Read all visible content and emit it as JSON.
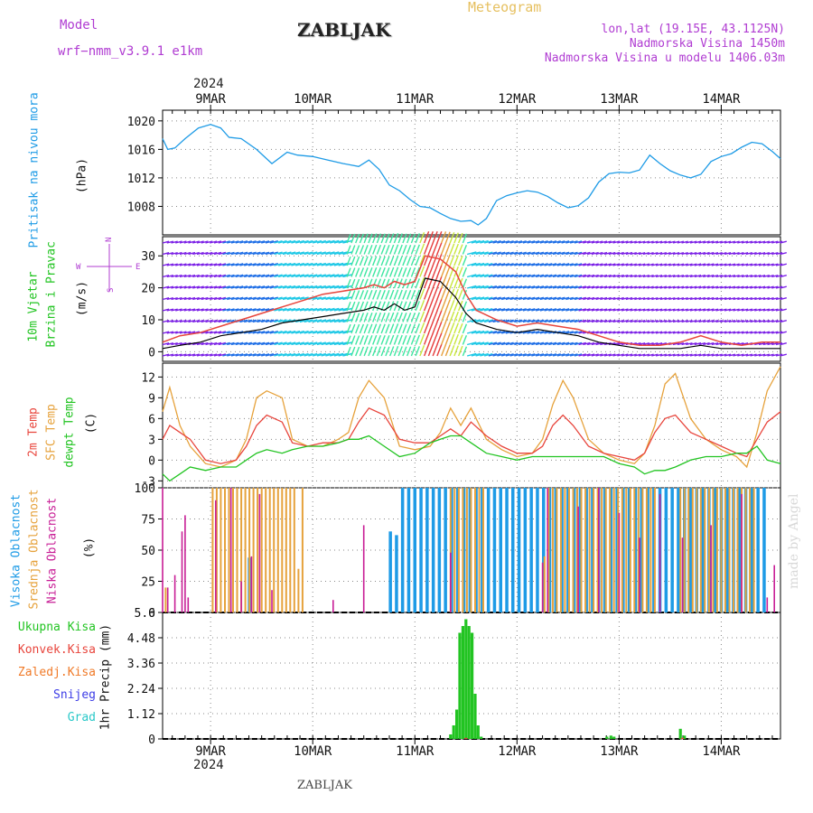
{
  "header": {
    "model_label": "Model",
    "model_name": "wrf−nmm_v3.9.1  e1km",
    "title": "ZABLJAK",
    "meteogram": "Meteogram",
    "location": "lon,lat (19.15E, 43.1125N)",
    "altitude": "Nadmorska Visina 1450m",
    "model_altitude": "Nadmorska Visina u modelu 1406.03m",
    "year": "2024",
    "footer_station": "ZABLJAK",
    "watermark": "made by Angel"
  },
  "axis_labels": {
    "pressure_name": "Pritisak na nivou mora",
    "pressure_unit": "(hPa)",
    "wind_name1": "10m Vjetar",
    "wind_name2": "Brzina i Pravac",
    "wind_unit": "(m/s)",
    "compass_n": "N",
    "compass_s": "S",
    "compass_w": "W",
    "compass_e": "E",
    "temp_name1": "2m Temp",
    "temp_name2": "SFC Temp",
    "temp_name3": "dewpt Temp",
    "temp_unit": "(C)",
    "cloud_name1": "Visoka Oblacnost",
    "cloud_name2": "Srednja Oblacnost",
    "cloud_name3": "Niska Oblacnost",
    "cloud_unit": "(%)",
    "precip_axis": "1hr Precip (mm)",
    "precip_legend": [
      "Ukupna Kisa",
      "Konvek.Kisa",
      "Zaledj.Kisa",
      "Snijeg",
      "Grad"
    ]
  },
  "colors": {
    "pressure": "#1e9be6",
    "temp2m": "#e8453c",
    "sfc": "#e6a23c",
    "dewpt": "#22c422",
    "high_cloud": "#1e9be6",
    "mid_cloud": "#e6a23c",
    "low_cloud": "#c81e96",
    "precip_total": "#22c422",
    "precip_conv": "#e8453c",
    "precip_frz": "#f07a28",
    "precip_snow": "#3c3ce6",
    "precip_hail": "#28c8c8",
    "wind_speed": "#000000",
    "wind_gust": "#e8453c",
    "header_purple": "#b03cd2",
    "header_gold": "#e6c060"
  },
  "chart_data": [
    {
      "type": "line",
      "name": "pressure",
      "x_tick_labels": [
        "9MAR",
        "10MAR",
        "11MAR",
        "12MAR",
        "13MAR",
        "14MAR"
      ],
      "x_ticks_day": [
        0,
        1,
        2,
        3,
        4,
        5
      ],
      "xlim_day": [
        -0.47,
        5.58
      ],
      "ylim": [
        1004,
        1021.5
      ],
      "yticks": [
        1008,
        1012,
        1016,
        1020
      ],
      "series": [
        {
          "x": [
            -0.47,
            -0.42,
            -0.35,
            -0.25,
            -0.12,
            0.0,
            0.1,
            0.18,
            0.3,
            0.45,
            0.6,
            0.75,
            0.85,
            1.0,
            1.15,
            1.3,
            1.45,
            1.55,
            1.65,
            1.75,
            1.85,
            1.95,
            2.05,
            2.15,
            2.25,
            2.35,
            2.45,
            2.55,
            2.62,
            2.7,
            2.8,
            2.9,
            3.0,
            3.1,
            3.2,
            3.3,
            3.4,
            3.5,
            3.6,
            3.7,
            3.8,
            3.9,
            4.0,
            4.1,
            4.2,
            4.3,
            4.4,
            4.5,
            4.6,
            4.7,
            4.8,
            4.9,
            5.0,
            5.1,
            5.2,
            5.3,
            5.4,
            5.5,
            5.58
          ],
          "values": [
            1017.5,
            1016.0,
            1016.2,
            1017.5,
            1019.0,
            1019.5,
            1019.0,
            1017.7,
            1017.5,
            1016.0,
            1014.0,
            1015.6,
            1015.2,
            1015.0,
            1014.5,
            1014.0,
            1013.6,
            1014.5,
            1013.2,
            1011.0,
            1010.2,
            1009.0,
            1008.0,
            1007.8,
            1007.0,
            1006.3,
            1005.9,
            1006.0,
            1005.4,
            1006.3,
            1008.8,
            1009.5,
            1009.9,
            1010.2,
            1010.0,
            1009.4,
            1008.5,
            1007.8,
            1008.1,
            1009.2,
            1011.4,
            1012.6,
            1012.8,
            1012.7,
            1013.1,
            1015.2,
            1014.0,
            1013.0,
            1012.4,
            1012.0,
            1012.5,
            1014.3,
            1015.0,
            1015.4,
            1016.3,
            1017.0,
            1016.8,
            1015.7,
            1014.7
          ]
        }
      ]
    },
    {
      "type": "line",
      "name": "wind",
      "xlim_day": [
        -0.47,
        5.58
      ],
      "ylim": [
        -3,
        36
      ],
      "yticks": [
        0,
        10,
        20,
        30
      ],
      "series": [
        {
          "x": [
            -0.47,
            -0.3,
            -0.1,
            0.1,
            0.3,
            0.5,
            0.7,
            0.9,
            1.1,
            1.3,
            1.5,
            1.6,
            1.7,
            1.8,
            1.9,
            2.0,
            2.1,
            2.25,
            2.4,
            2.5,
            2.6,
            2.8,
            3.0,
            3.2,
            3.4,
            3.6,
            3.8,
            4.0,
            4.2,
            4.4,
            4.6,
            4.8,
            5.0,
            5.2,
            5.4,
            5.58
          ],
          "values": [
            1,
            2,
            3,
            5,
            6,
            7,
            9,
            10,
            11,
            12,
            13,
            14,
            13,
            15,
            13,
            14,
            23,
            22,
            17,
            12,
            9,
            7,
            6,
            7,
            6,
            5,
            3,
            2,
            1,
            1,
            1,
            2,
            1,
            1,
            1,
            1
          ]
        },
        {
          "x": [
            -0.47,
            -0.3,
            -0.1,
            0.1,
            0.3,
            0.5,
            0.7,
            0.9,
            1.1,
            1.3,
            1.5,
            1.6,
            1.7,
            1.8,
            1.9,
            2.0,
            2.1,
            2.25,
            2.4,
            2.5,
            2.6,
            2.8,
            3.0,
            3.2,
            3.4,
            3.6,
            3.8,
            4.0,
            4.2,
            4.4,
            4.6,
            4.8,
            5.0,
            5.2,
            5.4,
            5.58
          ],
          "values": [
            3,
            5,
            6,
            8,
            10,
            12,
            14,
            16,
            18,
            19,
            20,
            21,
            20,
            22,
            21,
            22,
            30,
            29,
            25,
            18,
            13,
            10,
            8,
            9,
            8,
            7,
            5,
            3,
            2,
            2,
            3,
            5,
            3,
            2,
            3,
            3
          ]
        }
      ]
    },
    {
      "type": "line",
      "name": "temperature",
      "xlim_day": [
        -0.47,
        5.58
      ],
      "ylim": [
        -4,
        14
      ],
      "yticks": [
        -3,
        0,
        3,
        6,
        9,
        12
      ],
      "series": [
        {
          "x": [
            -0.47,
            -0.4,
            -0.3,
            -0.2,
            -0.05,
            0.1,
            0.25,
            0.35,
            0.45,
            0.55,
            0.7,
            0.8,
            0.95,
            1.1,
            1.25,
            1.35,
            1.45,
            1.55,
            1.7,
            1.85,
            2.0,
            2.15,
            2.25,
            2.35,
            2.45,
            2.55,
            2.7,
            2.85,
            3.0,
            3.15,
            3.25,
            3.35,
            3.45,
            3.55,
            3.7,
            3.85,
            4.0,
            4.15,
            4.25,
            4.35,
            4.45,
            4.55,
            4.7,
            4.85,
            5.0,
            5.15,
            5.25,
            5.35,
            5.45,
            5.58
          ],
          "values": [
            3,
            5,
            4,
            3,
            0,
            -0.5,
            0,
            2,
            5,
            6.5,
            5.5,
            2.5,
            2,
            2.5,
            2.5,
            3,
            5.5,
            7.5,
            6.5,
            3,
            2.5,
            2.5,
            3.5,
            4.5,
            3.5,
            5.5,
            3.5,
            2,
            1,
            1,
            2,
            5,
            6.5,
            5,
            2,
            1,
            0.5,
            0,
            1,
            4,
            6,
            6.5,
            4,
            3,
            2,
            1,
            0.5,
            3,
            5.5,
            7
          ]
        },
        {
          "x": [
            -0.47,
            -0.4,
            -0.3,
            -0.2,
            -0.05,
            0.1,
            0.25,
            0.35,
            0.45,
            0.55,
            0.7,
            0.8,
            0.95,
            1.1,
            1.25,
            1.35,
            1.45,
            1.55,
            1.7,
            1.85,
            2.0,
            2.15,
            2.25,
            2.35,
            2.45,
            2.55,
            2.7,
            2.85,
            3.0,
            3.15,
            3.25,
            3.35,
            3.45,
            3.55,
            3.7,
            3.85,
            4.0,
            4.15,
            4.25,
            4.35,
            4.45,
            4.55,
            4.7,
            4.85,
            5.0,
            5.15,
            5.25,
            5.35,
            5.45,
            5.58
          ],
          "values": [
            7,
            10.5,
            5,
            2,
            -0.5,
            -1,
            0,
            3,
            9,
            10,
            9,
            3,
            2,
            2,
            3,
            4,
            9,
            11.5,
            9,
            2,
            1.5,
            2,
            4,
            7.5,
            5,
            7.5,
            3,
            1.5,
            0.5,
            1,
            3,
            8,
            11.5,
            9,
            3,
            1,
            0,
            -0.5,
            1,
            5,
            11,
            12.5,
            6,
            3,
            1.5,
            0.5,
            -1,
            4,
            10,
            13.5
          ]
        },
        {
          "x": [
            -0.47,
            -0.4,
            -0.3,
            -0.2,
            -0.05,
            0.1,
            0.25,
            0.35,
            0.45,
            0.55,
            0.7,
            0.8,
            0.95,
            1.1,
            1.25,
            1.35,
            1.45,
            1.55,
            1.7,
            1.85,
            2.0,
            2.15,
            2.25,
            2.35,
            2.45,
            2.55,
            2.7,
            2.85,
            3.0,
            3.15,
            3.25,
            3.35,
            3.45,
            3.55,
            3.7,
            3.85,
            4.0,
            4.15,
            4.25,
            4.35,
            4.45,
            4.55,
            4.7,
            4.85,
            5.0,
            5.15,
            5.25,
            5.35,
            5.45,
            5.58
          ],
          "values": [
            -2,
            -3,
            -2,
            -1,
            -1.5,
            -1,
            -1,
            0,
            1,
            1.5,
            1,
            1.5,
            2,
            2,
            2.5,
            3,
            3,
            3.5,
            2,
            0.5,
            1,
            2.5,
            3,
            3.5,
            3.5,
            2.5,
            1,
            0.5,
            0,
            0.5,
            0.5,
            0.5,
            0.5,
            0.5,
            0.5,
            0.5,
            -0.5,
            -1,
            -2,
            -1.5,
            -1.5,
            -1,
            0,
            0.5,
            0.5,
            1,
            1,
            2,
            0,
            -0.5
          ]
        }
      ]
    },
    {
      "type": "bar",
      "name": "cloud_cover",
      "xlim_day": [
        -0.47,
        5.58
      ],
      "ylim": [
        0,
        100
      ],
      "yticks": [
        0,
        25,
        50,
        75,
        100
      ],
      "high_x": [
        -0.05,
        0.02,
        0.08,
        0.14,
        0.2,
        0.26,
        0.32,
        0.38,
        0.44,
        0.5,
        0.56,
        0.62,
        0.68,
        0.74,
        0.8,
        0.86,
        0.92,
        0.98,
        1.04,
        1.1,
        1.16,
        1.22,
        1.28,
        1.34,
        1.4,
        1.46,
        1.52,
        1.58,
        1.64,
        1.7,
        1.76,
        1.82,
        1.88,
        1.94,
        2.0,
        2.06,
        2.12,
        2.18,
        2.24,
        2.3,
        2.36,
        2.42,
        2.48,
        2.54,
        2.6,
        2.66,
        2.72,
        2.78,
        2.84,
        2.9,
        2.96,
        3.02,
        3.08,
        3.14,
        3.2,
        3.26,
        3.32,
        3.38,
        3.44,
        3.5,
        3.56,
        3.62,
        3.68,
        3.74,
        3.8,
        3.86,
        3.92,
        3.98,
        4.04,
        4.1,
        4.16,
        4.22,
        4.28,
        4.34,
        4.4,
        4.46,
        4.52,
        4.58,
        4.64,
        4.7,
        4.76,
        4.82,
        4.88,
        4.94,
        5.0,
        5.06,
        5.12,
        5.18,
        5.24,
        5.3,
        5.36,
        5.42,
        5.48
      ],
      "high_values": [
        0,
        0,
        0,
        0,
        0,
        0,
        0,
        44,
        0,
        0,
        0,
        0,
        0,
        0,
        0,
        0,
        0,
        0,
        0,
        0,
        0,
        0,
        0,
        0,
        0,
        0,
        0,
        0,
        0,
        0,
        65,
        62,
        100,
        100,
        100,
        100,
        100,
        100,
        100,
        100,
        100,
        100,
        100,
        100,
        100,
        100,
        100,
        100,
        100,
        100,
        100,
        100,
        100,
        100,
        100,
        100,
        100,
        100,
        100,
        100,
        100,
        100,
        100,
        100,
        100,
        100,
        100,
        100,
        100,
        100,
        100,
        100,
        100,
        100,
        100,
        100,
        100,
        100,
        100,
        100,
        100,
        100,
        100,
        100,
        100,
        100,
        100,
        100,
        100,
        100,
        100,
        100,
        0
      ],
      "mid_x": [
        -0.44,
        0.02,
        0.06,
        0.1,
        0.14,
        0.18,
        0.22,
        0.26,
        0.3,
        0.34,
        0.38,
        0.42,
        0.46,
        0.5,
        0.54,
        0.58,
        0.62,
        0.66,
        0.7,
        0.74,
        0.78,
        0.82,
        0.86,
        0.9,
        2.35,
        2.39,
        2.43,
        2.47,
        2.51,
        2.55,
        2.59,
        2.63,
        2.67,
        3.27,
        3.31,
        3.35,
        3.39,
        3.43,
        3.47,
        3.51,
        3.55,
        3.59,
        3.63,
        3.67,
        3.71,
        3.75,
        3.79,
        3.83,
        3.87,
        3.91,
        3.95,
        3.99,
        4.03,
        4.07,
        4.11,
        4.15,
        4.19,
        4.23,
        4.27,
        4.31,
        4.35,
        4.6,
        4.64,
        4.68,
        4.72,
        4.76,
        4.8,
        4.84,
        4.88,
        4.92,
        4.96,
        5.0,
        5.04,
        5.08,
        5.12,
        5.16,
        5.2,
        5.24,
        5.28,
        5.32
      ],
      "mid_values": [
        20,
        100,
        100,
        100,
        100,
        100,
        100,
        100,
        100,
        100,
        100,
        100,
        100,
        100,
        100,
        100,
        100,
        100,
        100,
        100,
        100,
        100,
        35,
        100,
        100,
        100,
        100,
        100,
        100,
        100,
        100,
        100,
        100,
        45,
        100,
        100,
        100,
        100,
        100,
        100,
        100,
        100,
        100,
        100,
        100,
        100,
        100,
        100,
        100,
        100,
        100,
        100,
        100,
        100,
        100,
        100,
        100,
        100,
        100,
        100,
        100,
        100,
        100,
        100,
        100,
        100,
        100,
        100,
        100,
        100,
        100,
        100,
        100,
        100,
        100,
        100,
        100,
        100,
        100,
        100
      ],
      "low_x": [
        -0.47,
        -0.42,
        -0.35,
        -0.28,
        -0.25,
        -0.22,
        0.05,
        0.2,
        0.3,
        0.4,
        0.48,
        0.6,
        1.2,
        1.5,
        2.35,
        3.25,
        3.3,
        3.6,
        3.8,
        4.0,
        4.2,
        4.4,
        4.62,
        4.9,
        5.2,
        5.45,
        5.52
      ],
      "low_values": [
        100,
        20,
        30,
        65,
        78,
        12,
        90,
        100,
        25,
        45,
        95,
        18,
        10,
        70,
        48,
        40,
        100,
        85,
        100,
        80,
        60,
        95,
        60,
        70,
        95,
        12,
        38
      ]
    },
    {
      "type": "bar",
      "name": "precipitation",
      "xlim_day": [
        -0.47,
        5.58
      ],
      "ylim": [
        0,
        5.6
      ],
      "yticks": [
        0,
        1.12,
        2.24,
        3.36,
        4.48,
        5.6
      ],
      "total_x": [
        2.35,
        2.38,
        2.41,
        2.44,
        2.47,
        2.5,
        2.53,
        2.56,
        2.59,
        2.62,
        2.65,
        3.88,
        3.92,
        3.95,
        4.6,
        4.64
      ],
      "total_values": [
        0.2,
        0.6,
        1.3,
        4.7,
        5.0,
        5.3,
        5.0,
        4.7,
        2.0,
        0.6,
        0.1,
        0.1,
        0.15,
        0.1,
        0.45,
        0.15
      ],
      "conv_x": [
        2.5,
        4.62
      ],
      "conv_values": [
        0.05,
        0.05
      ]
    }
  ]
}
